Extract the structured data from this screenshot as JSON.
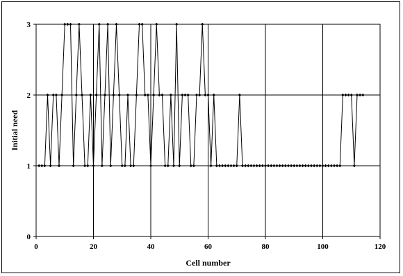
{
  "chart_data": {
    "type": "line",
    "title": "",
    "xlabel": "Cell number",
    "ylabel": "Initial need",
    "xlim": [
      0,
      120
    ],
    "ylim": [
      0,
      3
    ],
    "xticks": [
      0,
      20,
      40,
      60,
      80,
      100,
      120
    ],
    "yticks": [
      0,
      1,
      2,
      3
    ],
    "grid": true,
    "legend": "none",
    "line_color": "#000000",
    "marker": "diamond",
    "series": [
      {
        "x": [
          1,
          2,
          3,
          4,
          5,
          6,
          7,
          8,
          9,
          10,
          11,
          12,
          13,
          14,
          15,
          16,
          17,
          18,
          19,
          20,
          21,
          22,
          23,
          24,
          25,
          26,
          27,
          28,
          29,
          30,
          31,
          32,
          33,
          34,
          35,
          36,
          37,
          38,
          39,
          40,
          41,
          42,
          43,
          44,
          45,
          46,
          47,
          48,
          49,
          50,
          51,
          52,
          53,
          54,
          55,
          56,
          57,
          58,
          59,
          60,
          61,
          62,
          63,
          64,
          65,
          66,
          67,
          68,
          69,
          70,
          71,
          72,
          73,
          74,
          75,
          76,
          77,
          78,
          79,
          80,
          81,
          82,
          83,
          84,
          85,
          86,
          87,
          88,
          89,
          90,
          91,
          92,
          93,
          94,
          95,
          96,
          97,
          98,
          99,
          100,
          101,
          102,
          103,
          104,
          105,
          106,
          107,
          108,
          109,
          110,
          111,
          112,
          113,
          114
        ],
        "values": [
          1,
          1,
          1,
          2,
          1,
          2,
          2,
          1,
          2,
          3,
          3,
          3,
          1,
          2,
          3,
          2,
          1,
          1,
          2,
          1,
          2,
          3,
          1,
          2,
          3,
          1,
          2,
          3,
          2,
          1,
          1,
          2,
          1,
          1,
          2,
          3,
          3,
          2,
          2,
          1,
          2,
          3,
          2,
          2,
          1,
          1,
          2,
          1,
          3,
          1,
          2,
          2,
          2,
          1,
          1,
          2,
          2,
          3,
          2,
          2,
          1,
          2,
          1,
          1,
          1,
          1,
          1,
          1,
          1,
          1,
          2,
          1,
          1,
          1,
          1,
          1,
          1,
          1,
          1,
          1,
          1,
          1,
          1,
          1,
          1,
          1,
          1,
          1,
          1,
          1,
          1,
          1,
          1,
          1,
          1,
          1,
          1,
          1,
          1,
          1,
          1,
          1,
          1,
          1,
          1,
          1,
          2,
          2,
          2,
          2,
          1,
          2,
          2,
          2
        ]
      }
    ]
  }
}
